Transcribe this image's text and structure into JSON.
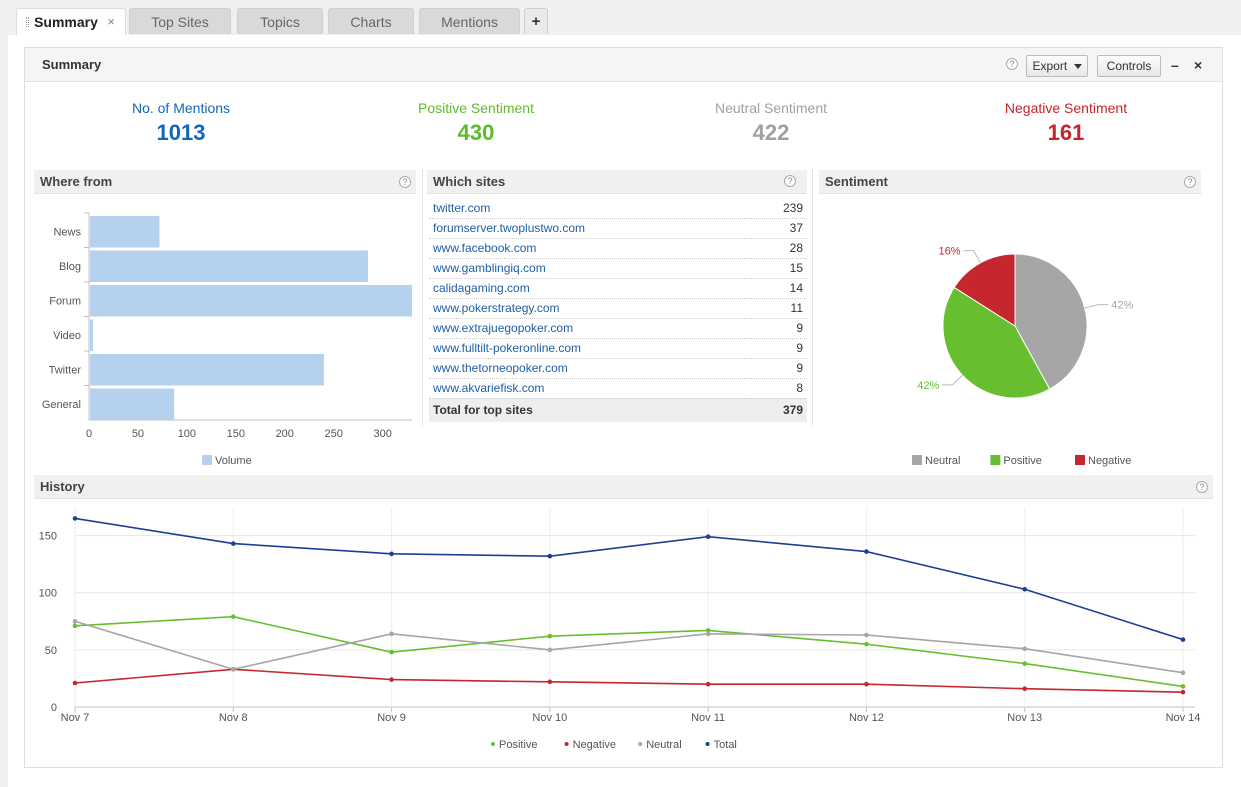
{
  "tabs": [
    {
      "label": "Summary",
      "active": true
    },
    {
      "label": "Top Sites"
    },
    {
      "label": "Topics"
    },
    {
      "label": "Charts"
    },
    {
      "label": "Mentions"
    }
  ],
  "tab_close": "×",
  "tab_add": "+",
  "panel": {
    "title": "Summary",
    "help": "?",
    "export_label": "Export",
    "controls_label": "Controls",
    "minimize": "–",
    "close": "×"
  },
  "stats": {
    "mentions": {
      "label": "No. of Mentions",
      "value": "1013",
      "color": "#1565b8"
    },
    "positive": {
      "label": "Positive Sentiment",
      "value": "430",
      "color": "#5dbb2e"
    },
    "neutral": {
      "label": "Neutral Sentiment",
      "value": "422",
      "color": "#a0a0a0"
    },
    "negative": {
      "label": "Negative Sentiment",
      "value": "161",
      "color": "#c4242c"
    }
  },
  "where_from": {
    "title": "Where from",
    "help": "?"
  },
  "which_sites": {
    "title": "Which sites",
    "help": "?",
    "rows": [
      {
        "site": "twitter.com",
        "count": "239"
      },
      {
        "site": "forumserver.twoplustwo.com",
        "count": "37"
      },
      {
        "site": "www.facebook.com",
        "count": "28"
      },
      {
        "site": "www.gamblingiq.com",
        "count": "15"
      },
      {
        "site": "calidagaming.com",
        "count": "14"
      },
      {
        "site": "www.pokerstrategy.com",
        "count": "11"
      },
      {
        "site": "www.extrajuegopoker.com",
        "count": "9"
      },
      {
        "site": "www.fulltilt-pokeronline.com",
        "count": "9"
      },
      {
        "site": "www.thetorneopoker.com",
        "count": "9"
      },
      {
        "site": "www.akvariefisk.com",
        "count": "8"
      }
    ],
    "total_label": "Total for top sites",
    "total_value": "379"
  },
  "sentiment": {
    "title": "Sentiment",
    "help": "?"
  },
  "history": {
    "title": "History",
    "help": "?"
  },
  "chart_data": [
    {
      "type": "bar",
      "orientation": "horizontal",
      "categories": [
        "News",
        "Blog",
        "Forum",
        "Video",
        "Twitter",
        "General"
      ],
      "series": [
        {
          "name": "Volume",
          "values": [
            72,
            285,
            330,
            4,
            240,
            87
          ],
          "color": "#b5d1ee"
        }
      ],
      "xlim": [
        0,
        330
      ],
      "xticks": [
        0,
        50,
        100,
        150,
        200,
        250,
        300
      ],
      "legend_placement": "bottom",
      "grid": false
    },
    {
      "type": "pie",
      "slices": [
        {
          "name": "Neutral",
          "value": 42,
          "label": "42%",
          "color": "#a6a6a6"
        },
        {
          "name": "Positive",
          "value": 42,
          "label": "42%",
          "color": "#67bf2f"
        },
        {
          "name": "Negative",
          "value": 16,
          "label": "16%",
          "color": "#c6262e"
        }
      ],
      "legend_placement": "bottom"
    },
    {
      "type": "line",
      "x": [
        "Nov 7",
        "Nov 8",
        "Nov 9",
        "Nov 10",
        "Nov 11",
        "Nov 12",
        "Nov 13",
        "Nov 14"
      ],
      "series": [
        {
          "name": "Positive",
          "color": "#67bf2f",
          "values": [
            71,
            79,
            48,
            62,
            67,
            55,
            38,
            18
          ]
        },
        {
          "name": "Negative",
          "color": "#c6262e",
          "values": [
            21,
            33,
            24,
            22,
            20,
            20,
            16,
            13
          ]
        },
        {
          "name": "Neutral",
          "color": "#a6a6a6",
          "values": [
            75,
            33,
            64,
            50,
            64,
            63,
            51,
            30
          ]
        },
        {
          "name": "Total",
          "color": "#1c3f94",
          "values": [
            165,
            143,
            134,
            132,
            149,
            136,
            103,
            59
          ]
        }
      ],
      "ylim": [
        0,
        175
      ],
      "yticks": [
        0,
        50,
        100,
        150
      ],
      "grid": true,
      "legend_placement": "bottom"
    }
  ]
}
